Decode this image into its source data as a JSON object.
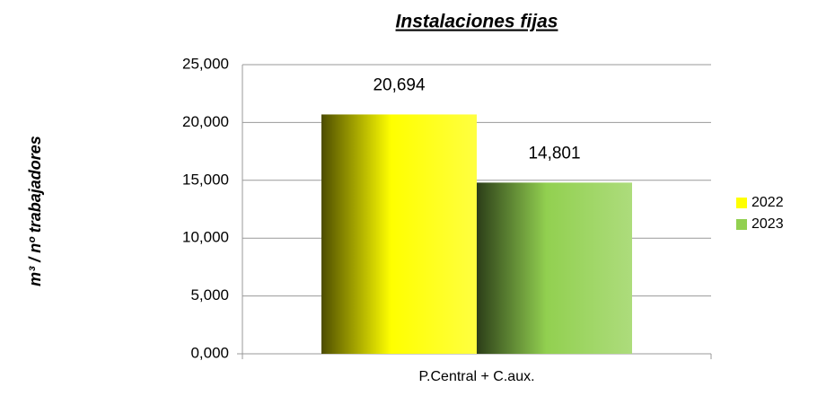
{
  "chart_data": {
    "type": "bar",
    "title": "Instalaciones fijas",
    "y_label": "m³ / nº trabajadores",
    "categories": [
      "P.Central + C.aux."
    ],
    "series": [
      {
        "name": "2022",
        "color": "#ffff00",
        "values": [
          20.694
        ],
        "value_labels": [
          "20,694"
        ]
      },
      {
        "name": "2023",
        "color": "#92d050",
        "values": [
          14.801
        ],
        "value_labels": [
          "14,801"
        ]
      }
    ],
    "ylim": [
      0,
      25
    ],
    "yticks": [
      {
        "value": 0,
        "label": "0,000"
      },
      {
        "value": 5,
        "label": "5,000"
      },
      {
        "value": 10,
        "label": "10,000"
      },
      {
        "value": 15,
        "label": "15,000"
      },
      {
        "value": 20,
        "label": "20,000"
      },
      {
        "value": 25,
        "label": "25,000"
      }
    ],
    "grid": true,
    "legend": "right"
  }
}
